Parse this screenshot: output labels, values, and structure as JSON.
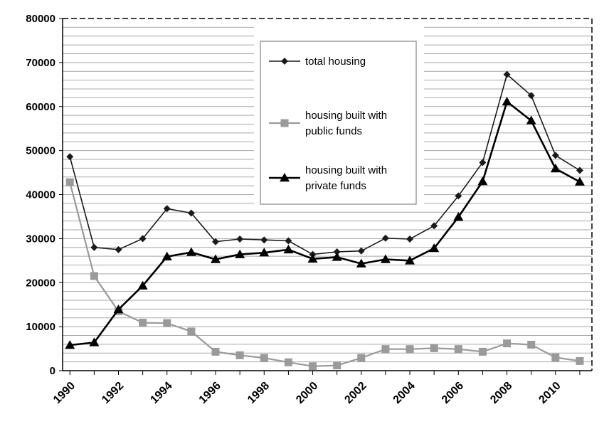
{
  "chart_data": {
    "type": "line",
    "x": [
      1990,
      1991,
      1992,
      1993,
      1994,
      1995,
      1996,
      1997,
      1998,
      1999,
      2000,
      2001,
      2002,
      2003,
      2004,
      2005,
      2006,
      2007,
      2008,
      2009,
      2010,
      2011
    ],
    "x_tick_labels": [
      "1990",
      "1992",
      "1994",
      "1996",
      "1998",
      "2000",
      "2002",
      "2004",
      "2006",
      "2008",
      "2010"
    ],
    "y_tick_labels": [
      "0",
      "10000",
      "20000",
      "30000",
      "40000",
      "50000",
      "60000",
      "70000",
      "80000"
    ],
    "ylim": [
      0,
      80000
    ],
    "xlim": [
      1989.7,
      2011.5
    ],
    "grid": true,
    "legend_position": "top-center",
    "series": [
      {
        "name": "total housing",
        "legend_lines": [
          "total housing"
        ],
        "color": "#1a1a1a",
        "marker": "diamond",
        "values": [
          48600,
          28000,
          27500,
          30000,
          36800,
          35800,
          29300,
          29900,
          29700,
          29500,
          26400,
          27000,
          27200,
          30100,
          29900,
          32900,
          39700,
          47300,
          67300,
          62500,
          48900,
          45500
        ]
      },
      {
        "name": "housing built with public funds",
        "legend_lines": [
          "housing built with",
          "public funds"
        ],
        "color": "#9a9a9a",
        "marker": "square",
        "values": [
          42800,
          21500,
          13500,
          10900,
          10800,
          8900,
          4300,
          3500,
          2900,
          1900,
          1000,
          1200,
          2900,
          4900,
          4900,
          5100,
          4900,
          4300,
          6200,
          5900,
          3000,
          2200
        ]
      },
      {
        "name": "housing built with private funds",
        "legend_lines": [
          "housing built with",
          "private funds"
        ],
        "color": "#000000",
        "marker": "triangle",
        "values": [
          5800,
          6400,
          13900,
          19300,
          25900,
          26900,
          25300,
          26400,
          26800,
          27500,
          25400,
          25800,
          24300,
          25300,
          25000,
          27800,
          34900,
          43000,
          61100,
          56800,
          45900,
          42900
        ]
      }
    ]
  }
}
